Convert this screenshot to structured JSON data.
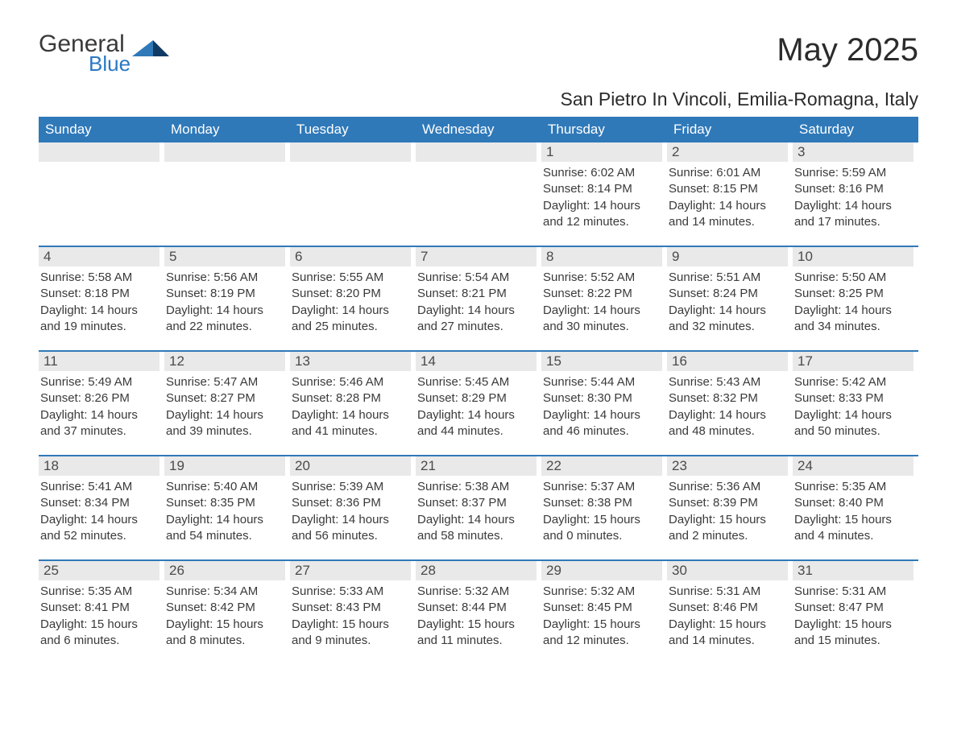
{
  "brand": {
    "word1": "General",
    "word2": "Blue",
    "word1_color": "#3a3a3a",
    "word2_color": "#2b78c2",
    "triangle_colors": [
      "#2f79b9",
      "#103a63"
    ]
  },
  "title": "May 2025",
  "location": "San Pietro In Vincoli, Emilia-Romagna, Italy",
  "colors": {
    "header_bg": "#2f79b9",
    "header_text": "#ffffff",
    "daynum_bg": "#e9e9e9",
    "daynum_text": "#4a4a4a",
    "body_text": "#3a3a3a",
    "rule": "#2f79b9",
    "page_bg": "#ffffff"
  },
  "typography": {
    "title_fontsize": 40,
    "location_fontsize": 23,
    "header_fontsize": 17,
    "daynum_fontsize": 17,
    "body_fontsize": 15,
    "font_family": "Arial"
  },
  "weekdays": [
    "Sunday",
    "Monday",
    "Tuesday",
    "Wednesday",
    "Thursday",
    "Friday",
    "Saturday"
  ],
  "weeks": [
    [
      {
        "n": "",
        "sunrise": "",
        "sunset": "",
        "daylight": ""
      },
      {
        "n": "",
        "sunrise": "",
        "sunset": "",
        "daylight": ""
      },
      {
        "n": "",
        "sunrise": "",
        "sunset": "",
        "daylight": ""
      },
      {
        "n": "",
        "sunrise": "",
        "sunset": "",
        "daylight": ""
      },
      {
        "n": "1",
        "sunrise": "Sunrise: 6:02 AM",
        "sunset": "Sunset: 8:14 PM",
        "daylight": "Daylight: 14 hours and 12 minutes."
      },
      {
        "n": "2",
        "sunrise": "Sunrise: 6:01 AM",
        "sunset": "Sunset: 8:15 PM",
        "daylight": "Daylight: 14 hours and 14 minutes."
      },
      {
        "n": "3",
        "sunrise": "Sunrise: 5:59 AM",
        "sunset": "Sunset: 8:16 PM",
        "daylight": "Daylight: 14 hours and 17 minutes."
      }
    ],
    [
      {
        "n": "4",
        "sunrise": "Sunrise: 5:58 AM",
        "sunset": "Sunset: 8:18 PM",
        "daylight": "Daylight: 14 hours and 19 minutes."
      },
      {
        "n": "5",
        "sunrise": "Sunrise: 5:56 AM",
        "sunset": "Sunset: 8:19 PM",
        "daylight": "Daylight: 14 hours and 22 minutes."
      },
      {
        "n": "6",
        "sunrise": "Sunrise: 5:55 AM",
        "sunset": "Sunset: 8:20 PM",
        "daylight": "Daylight: 14 hours and 25 minutes."
      },
      {
        "n": "7",
        "sunrise": "Sunrise: 5:54 AM",
        "sunset": "Sunset: 8:21 PM",
        "daylight": "Daylight: 14 hours and 27 minutes."
      },
      {
        "n": "8",
        "sunrise": "Sunrise: 5:52 AM",
        "sunset": "Sunset: 8:22 PM",
        "daylight": "Daylight: 14 hours and 30 minutes."
      },
      {
        "n": "9",
        "sunrise": "Sunrise: 5:51 AM",
        "sunset": "Sunset: 8:24 PM",
        "daylight": "Daylight: 14 hours and 32 minutes."
      },
      {
        "n": "10",
        "sunrise": "Sunrise: 5:50 AM",
        "sunset": "Sunset: 8:25 PM",
        "daylight": "Daylight: 14 hours and 34 minutes."
      }
    ],
    [
      {
        "n": "11",
        "sunrise": "Sunrise: 5:49 AM",
        "sunset": "Sunset: 8:26 PM",
        "daylight": "Daylight: 14 hours and 37 minutes."
      },
      {
        "n": "12",
        "sunrise": "Sunrise: 5:47 AM",
        "sunset": "Sunset: 8:27 PM",
        "daylight": "Daylight: 14 hours and 39 minutes."
      },
      {
        "n": "13",
        "sunrise": "Sunrise: 5:46 AM",
        "sunset": "Sunset: 8:28 PM",
        "daylight": "Daylight: 14 hours and 41 minutes."
      },
      {
        "n": "14",
        "sunrise": "Sunrise: 5:45 AM",
        "sunset": "Sunset: 8:29 PM",
        "daylight": "Daylight: 14 hours and 44 minutes."
      },
      {
        "n": "15",
        "sunrise": "Sunrise: 5:44 AM",
        "sunset": "Sunset: 8:30 PM",
        "daylight": "Daylight: 14 hours and 46 minutes."
      },
      {
        "n": "16",
        "sunrise": "Sunrise: 5:43 AM",
        "sunset": "Sunset: 8:32 PM",
        "daylight": "Daylight: 14 hours and 48 minutes."
      },
      {
        "n": "17",
        "sunrise": "Sunrise: 5:42 AM",
        "sunset": "Sunset: 8:33 PM",
        "daylight": "Daylight: 14 hours and 50 minutes."
      }
    ],
    [
      {
        "n": "18",
        "sunrise": "Sunrise: 5:41 AM",
        "sunset": "Sunset: 8:34 PM",
        "daylight": "Daylight: 14 hours and 52 minutes."
      },
      {
        "n": "19",
        "sunrise": "Sunrise: 5:40 AM",
        "sunset": "Sunset: 8:35 PM",
        "daylight": "Daylight: 14 hours and 54 minutes."
      },
      {
        "n": "20",
        "sunrise": "Sunrise: 5:39 AM",
        "sunset": "Sunset: 8:36 PM",
        "daylight": "Daylight: 14 hours and 56 minutes."
      },
      {
        "n": "21",
        "sunrise": "Sunrise: 5:38 AM",
        "sunset": "Sunset: 8:37 PM",
        "daylight": "Daylight: 14 hours and 58 minutes."
      },
      {
        "n": "22",
        "sunrise": "Sunrise: 5:37 AM",
        "sunset": "Sunset: 8:38 PM",
        "daylight": "Daylight: 15 hours and 0 minutes."
      },
      {
        "n": "23",
        "sunrise": "Sunrise: 5:36 AM",
        "sunset": "Sunset: 8:39 PM",
        "daylight": "Daylight: 15 hours and 2 minutes."
      },
      {
        "n": "24",
        "sunrise": "Sunrise: 5:35 AM",
        "sunset": "Sunset: 8:40 PM",
        "daylight": "Daylight: 15 hours and 4 minutes."
      }
    ],
    [
      {
        "n": "25",
        "sunrise": "Sunrise: 5:35 AM",
        "sunset": "Sunset: 8:41 PM",
        "daylight": "Daylight: 15 hours and 6 minutes."
      },
      {
        "n": "26",
        "sunrise": "Sunrise: 5:34 AM",
        "sunset": "Sunset: 8:42 PM",
        "daylight": "Daylight: 15 hours and 8 minutes."
      },
      {
        "n": "27",
        "sunrise": "Sunrise: 5:33 AM",
        "sunset": "Sunset: 8:43 PM",
        "daylight": "Daylight: 15 hours and 9 minutes."
      },
      {
        "n": "28",
        "sunrise": "Sunrise: 5:32 AM",
        "sunset": "Sunset: 8:44 PM",
        "daylight": "Daylight: 15 hours and 11 minutes."
      },
      {
        "n": "29",
        "sunrise": "Sunrise: 5:32 AM",
        "sunset": "Sunset: 8:45 PM",
        "daylight": "Daylight: 15 hours and 12 minutes."
      },
      {
        "n": "30",
        "sunrise": "Sunrise: 5:31 AM",
        "sunset": "Sunset: 8:46 PM",
        "daylight": "Daylight: 15 hours and 14 minutes."
      },
      {
        "n": "31",
        "sunrise": "Sunrise: 5:31 AM",
        "sunset": "Sunset: 8:47 PM",
        "daylight": "Daylight: 15 hours and 15 minutes."
      }
    ]
  ]
}
